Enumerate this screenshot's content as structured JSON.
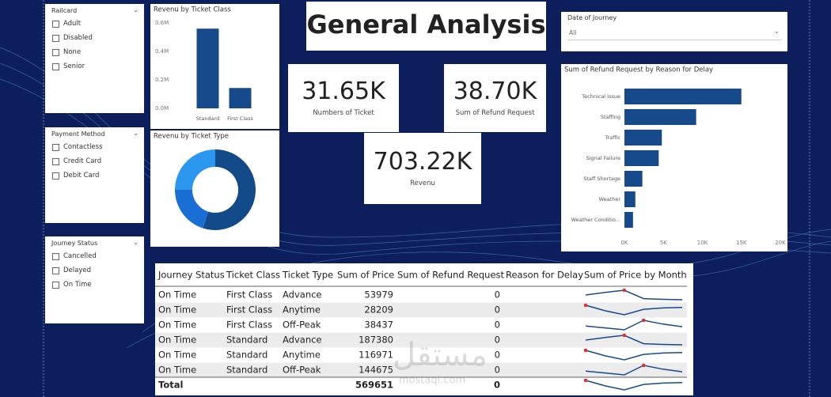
{
  "title": "General Analysis",
  "slicers": [
    {
      "title": "Railcard",
      "options": [
        "Adult",
        "Disabled",
        "None",
        "Senior"
      ]
    },
    {
      "title": "Payment Method",
      "options": [
        "Contactless",
        "Credit Card",
        "Debit Card"
      ]
    },
    {
      "title": "Journey Status",
      "options": [
        "Cancelled",
        "Delayed",
        "On Time"
      ]
    }
  ],
  "date_filter": {
    "title": "Date of Journey",
    "value": "All"
  },
  "kpis": [
    {
      "value": "31.65K",
      "label": "Numbers of Ticket"
    },
    {
      "value": "38.70K",
      "label": "Sum of Refund Request"
    },
    {
      "value": "703.22K",
      "label": "Revenu"
    }
  ],
  "chart_data": [
    {
      "type": "bar",
      "title": "Revenu by Ticket Class",
      "categories": [
        "Standard",
        "First Class"
      ],
      "values": [
        560000,
        143000
      ],
      "color": "#174a8b",
      "ylim": [
        0,
        600000
      ],
      "yticks": [
        {
          "value": 0,
          "label": "0.0M"
        },
        {
          "value": 200000,
          "label": "0.2M"
        },
        {
          "value": 400000,
          "label": "0.4M"
        },
        {
          "value": 600000,
          "label": "0.6M"
        }
      ],
      "grid": false
    },
    {
      "type": "donut",
      "title": "Revenu by Ticket Type",
      "values": [
        55,
        20,
        25
      ],
      "colors": [
        "#124a8a",
        "#1a6fd4",
        "#2b97ef"
      ]
    },
    {
      "type": "hbar",
      "title": "Sum of Refund Request by Reason for Delay",
      "categories": [
        "Technical Issue",
        "Staffing",
        "Traffic",
        "Signal Failure",
        "Staff Shortage",
        "Weather",
        "Weather Conditio..."
      ],
      "values": [
        15000,
        9200,
        4800,
        4400,
        2300,
        1400,
        1100
      ],
      "color": "#174a8b",
      "xlim": [
        0,
        20000
      ],
      "xticks": [
        {
          "value": 0,
          "label": "0K"
        },
        {
          "value": 5000,
          "label": "5K"
        },
        {
          "value": 10000,
          "label": "10K"
        },
        {
          "value": 15000,
          "label": "15K"
        },
        {
          "value": 20000,
          "label": "20K"
        }
      ],
      "grid": false
    }
  ],
  "table": {
    "columns": [
      "Journey Status",
      "Ticket Class",
      "Ticket Type",
      "Sum of Price",
      "Sum of Refund Request",
      "Reason for Delay",
      "Sum of Price by Month"
    ],
    "rows": [
      [
        "On Time",
        "First Class",
        "Advance",
        53979,
        0
      ],
      [
        "On Time",
        "First Class",
        "Anytime",
        28209,
        0
      ],
      [
        "On Time",
        "First Class",
        "Off-Peak",
        38437,
        0
      ],
      [
        "On Time",
        "Standard",
        "Advance",
        187380,
        0
      ],
      [
        "On Time",
        "Standard",
        "Anytime",
        116971,
        0
      ],
      [
        "On Time",
        "Standard",
        "Off-Peak",
        144675,
        0
      ]
    ],
    "sparklines": [
      [
        45,
        52,
        58,
        35,
        33,
        32
      ],
      [
        60,
        40,
        25,
        45,
        50,
        52
      ],
      [
        40,
        35,
        30,
        55,
        45,
        38
      ],
      [
        45,
        52,
        58,
        35,
        33,
        32
      ],
      [
        60,
        40,
        25,
        45,
        50,
        52
      ],
      [
        40,
        35,
        30,
        55,
        45,
        38
      ]
    ],
    "total": {
      "label": "Total",
      "sum_of_price": 569651,
      "refund": 0,
      "sparkline": [
        60,
        40,
        25,
        45,
        50,
        52
      ]
    },
    "line_color": "#174a8b",
    "max_color": "#e03030"
  },
  "watermark": [
    "مستقل",
    "mostaqi.com"
  ]
}
